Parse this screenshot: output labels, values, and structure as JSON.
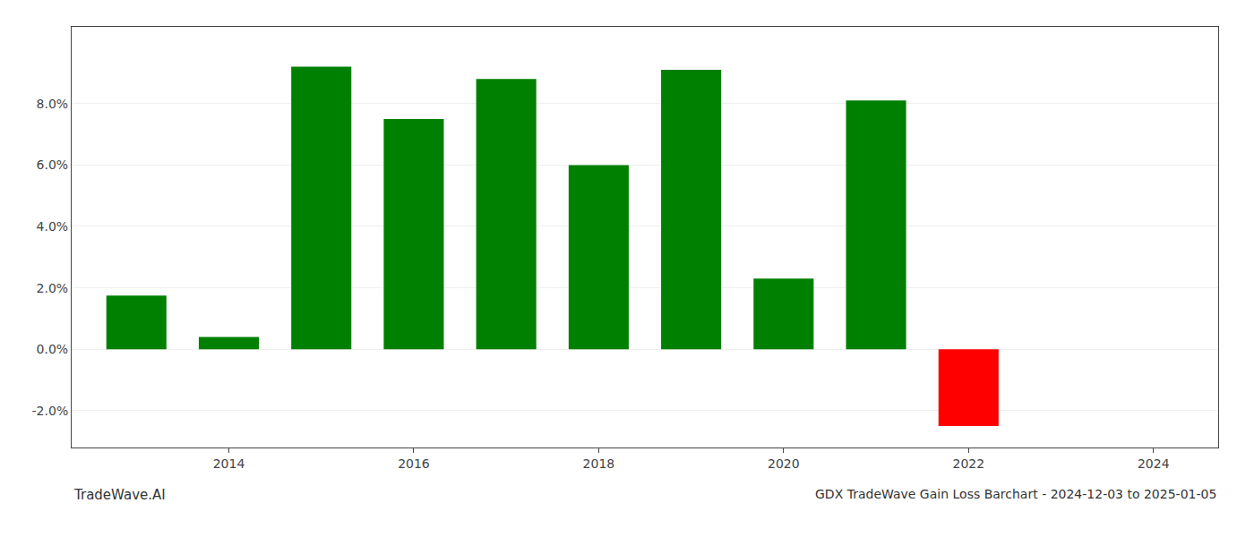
{
  "chart_data": {
    "type": "bar",
    "title": "GDX TradeWave Gain Loss Barchart - 2024-12-03 to 2025-01-05",
    "x": [
      2013,
      2014,
      2015,
      2016,
      2017,
      2018,
      2019,
      2020,
      2021,
      2022
    ],
    "values": [
      1.75,
      0.4,
      9.2,
      7.5,
      8.8,
      6.0,
      9.1,
      2.3,
      8.1,
      -2.5
    ],
    "colors": [
      "#008000",
      "#008000",
      "#008000",
      "#008000",
      "#008000",
      "#008000",
      "#008000",
      "#008000",
      "#008000",
      "#ff0000"
    ],
    "xlim": [
      2012.3,
      2024.7
    ],
    "xticks": [
      2014,
      2016,
      2018,
      2020,
      2022,
      2024
    ],
    "ylim": [
      -3.2,
      10.5
    ],
    "yticks": [
      {
        "value": -2.0,
        "label": "-2.0%"
      },
      {
        "value": 0.0,
        "label": "0.0%"
      },
      {
        "value": 2.0,
        "label": "2.0%"
      },
      {
        "value": 4.0,
        "label": "4.0%"
      },
      {
        "value": 6.0,
        "label": "6.0%"
      },
      {
        "value": 8.0,
        "label": "8.0%"
      }
    ],
    "grid": true,
    "annotations": [
      {
        "text": "TradeWave.AI"
      }
    ]
  }
}
